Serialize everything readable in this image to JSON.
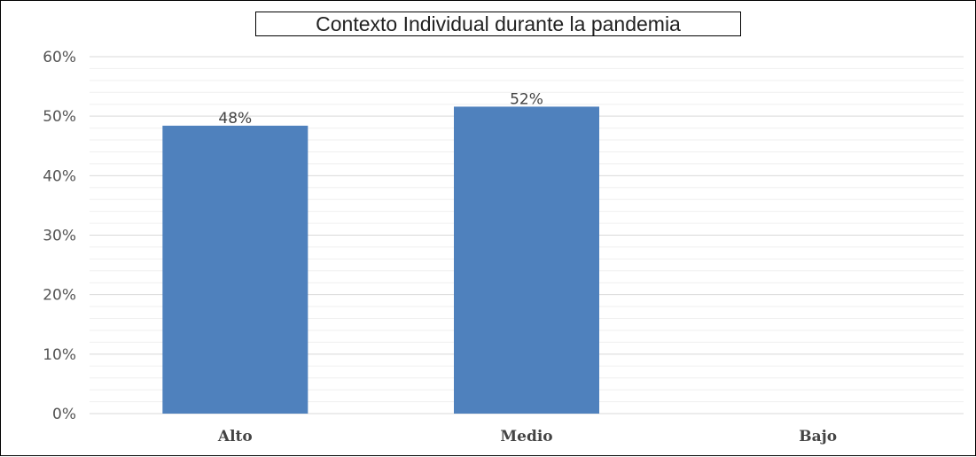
{
  "chart_data": {
    "type": "bar",
    "title": "Contexto Individual durante la pandemia",
    "categories": [
      "Alto",
      "Medio",
      "Bajo"
    ],
    "values": [
      48.4,
      51.6,
      0
    ],
    "data_labels": [
      "48%",
      "52%",
      ""
    ],
    "ylim": [
      0,
      60
    ],
    "yticks": [
      0,
      10,
      20,
      30,
      40,
      50,
      60
    ],
    "ytick_labels": [
      "0%",
      "10%",
      "20%",
      "30%",
      "40%",
      "50%",
      "60%"
    ],
    "xlabel": "",
    "ylabel": "",
    "grid": true,
    "minor_grid": true,
    "bar_color": "#4f81bd",
    "grid_color": "#d9d9d9"
  }
}
